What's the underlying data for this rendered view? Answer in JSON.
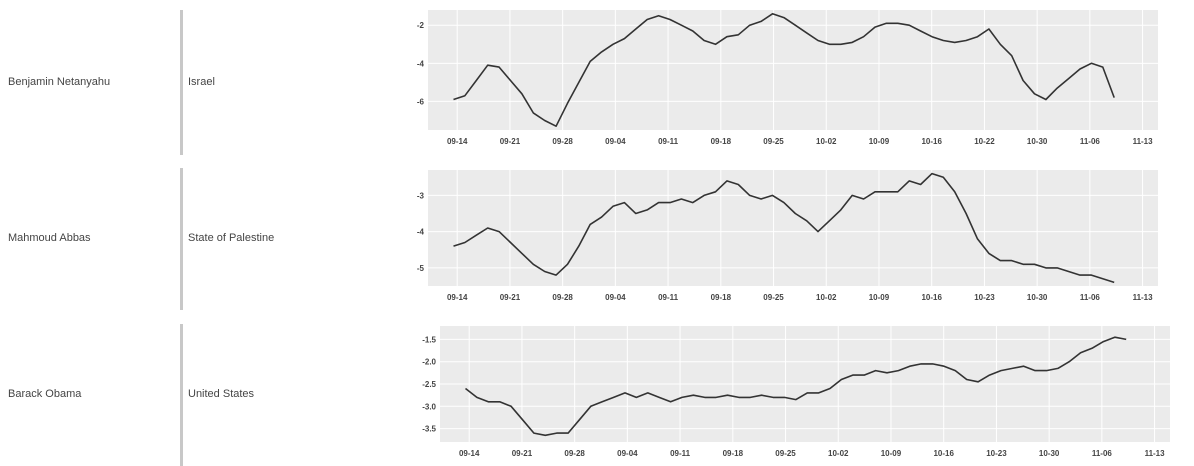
{
  "rows": [
    {
      "name": "Benjamin Netanyahu",
      "country": "Israel"
    },
    {
      "name": "Mahmoud Abbas",
      "country": "State of Palestine"
    },
    {
      "name": "Barack Obama",
      "country": "United States"
    }
  ],
  "colors": {
    "plot_bg": "#ebebeb",
    "grid": "#ffffff",
    "line": "#333333",
    "axis_text": "#444444",
    "divider": "#c8c8c8"
  },
  "chart_data": [
    {
      "type": "line",
      "title": "",
      "xlabel": "",
      "ylabel": "",
      "x_ticks": [
        "09-14",
        "09-21",
        "09-28",
        "09-04",
        "09-11",
        "09-18",
        "09-25",
        "10-02",
        "10-09",
        "10-16",
        "10-22",
        "10-30",
        "11-06",
        "11-13"
      ],
      "y_ticks": [
        -2,
        -4,
        -6
      ],
      "ylim": [
        -7.5,
        -1.2
      ],
      "x": [
        "09-12",
        "09-13",
        "09-14",
        "09-15",
        "09-16",
        "09-17",
        "09-18",
        "09-19",
        "09-20",
        "09-21",
        "09-22",
        "09-23",
        "09-24",
        "09-25",
        "09-26",
        "09-27",
        "09-28",
        "09-29",
        "09-30",
        "10-01",
        "10-02",
        "10-03",
        "10-04",
        "10-05",
        "10-06",
        "10-07",
        "10-08",
        "10-09",
        "10-10",
        "10-11",
        "10-12",
        "10-13",
        "10-14",
        "10-15",
        "10-16",
        "10-17",
        "10-18",
        "10-19",
        "10-20",
        "10-21",
        "10-22",
        "10-23",
        "10-24",
        "10-25",
        "10-26",
        "10-27",
        "10-28",
        "10-29",
        "10-30",
        "10-31",
        "11-01",
        "11-02",
        "11-03",
        "11-04",
        "11-05",
        "11-06",
        "11-07",
        "11-08",
        "11-09"
      ],
      "series": [
        {
          "values": [
            -5.9,
            -5.7,
            -4.9,
            -4.1,
            -4.2,
            -4.9,
            -5.6,
            -6.6,
            -7.0,
            -7.3,
            -6.1,
            -5.0,
            -3.9,
            -3.4,
            -3.0,
            -2.7,
            -2.2,
            -1.7,
            -1.5,
            -1.7,
            -2.0,
            -2.3,
            -2.8,
            -3.0,
            -2.6,
            -2.5,
            -2.0,
            -1.8,
            -1.4,
            -1.6,
            -2.0,
            -2.4,
            -2.8,
            -3.0,
            -3.0,
            -2.9,
            -2.6,
            -2.1,
            -1.9,
            -1.9,
            -2.0,
            -2.3,
            -2.6,
            -2.8,
            -2.9,
            -2.8,
            -2.6,
            -2.2,
            -3.0,
            -3.6,
            -4.9,
            -5.6,
            -5.9,
            -5.3,
            -4.8,
            -4.3,
            -4.0,
            -4.2,
            -5.8
          ]
        }
      ]
    },
    {
      "type": "line",
      "title": "",
      "xlabel": "",
      "ylabel": "",
      "x_ticks": [
        "09-14",
        "09-21",
        "09-28",
        "09-04",
        "09-11",
        "09-18",
        "09-25",
        "10-02",
        "10-09",
        "10-16",
        "10-23",
        "10-30",
        "11-06",
        "11-13"
      ],
      "y_ticks": [
        -3,
        -4,
        -5
      ],
      "ylim": [
        -5.5,
        -2.3
      ],
      "x": [
        "09-12",
        "09-13",
        "09-14",
        "09-15",
        "09-16",
        "09-17",
        "09-18",
        "09-19",
        "09-20",
        "09-21",
        "09-22",
        "09-23",
        "09-24",
        "09-25",
        "09-26",
        "09-27",
        "09-28",
        "09-29",
        "09-30",
        "10-01",
        "10-02",
        "10-03",
        "10-04",
        "10-05",
        "10-06",
        "10-07",
        "10-08",
        "10-09",
        "10-10",
        "10-11",
        "10-12",
        "10-13",
        "10-14",
        "10-15",
        "10-16",
        "10-17",
        "10-18",
        "10-19",
        "10-20",
        "10-21",
        "10-22",
        "10-23",
        "10-24",
        "10-25",
        "10-26",
        "10-27",
        "10-28",
        "10-29",
        "10-30",
        "10-31",
        "11-01",
        "11-02",
        "11-03",
        "11-04",
        "11-05",
        "11-06",
        "11-07",
        "11-08",
        "11-09"
      ],
      "series": [
        {
          "values": [
            -4.4,
            -4.3,
            -4.1,
            -3.9,
            -4.0,
            -4.3,
            -4.6,
            -4.9,
            -5.1,
            -5.2,
            -4.9,
            -4.4,
            -3.8,
            -3.6,
            -3.3,
            -3.2,
            -3.5,
            -3.4,
            -3.2,
            -3.2,
            -3.1,
            -3.2,
            -3.0,
            -2.9,
            -2.6,
            -2.7,
            -3.0,
            -3.1,
            -3.0,
            -3.2,
            -3.5,
            -3.7,
            -4.0,
            -3.7,
            -3.4,
            -3.0,
            -3.1,
            -2.9,
            -2.9,
            -2.9,
            -2.6,
            -2.7,
            -2.4,
            -2.5,
            -2.9,
            -3.5,
            -4.2,
            -4.6,
            -4.8,
            -4.8,
            -4.9,
            -4.9,
            -5.0,
            -5.0,
            -5.1,
            -5.2,
            -5.2,
            -5.3,
            -5.4
          ]
        }
      ]
    },
    {
      "type": "line",
      "title": "",
      "xlabel": "",
      "ylabel": "",
      "x_ticks": [
        "09-14",
        "09-21",
        "09-28",
        "09-04",
        "09-11",
        "09-18",
        "09-25",
        "10-02",
        "10-09",
        "10-16",
        "10-23",
        "10-30",
        "11-06",
        "11-13"
      ],
      "y_ticks": [
        -1.5,
        -2.0,
        -2.5,
        -3.0,
        -3.5
      ],
      "y_tick_labels": [
        "-1.5",
        "-2.0",
        "-2.5",
        "-3.0",
        "-3.5"
      ],
      "ylim": [
        -3.8,
        -1.2
      ],
      "x": [
        "09-12",
        "09-13",
        "09-14",
        "09-15",
        "09-16",
        "09-17",
        "09-18",
        "09-19",
        "09-20",
        "09-21",
        "09-22",
        "09-23",
        "09-24",
        "09-25",
        "09-26",
        "09-27",
        "09-28",
        "09-29",
        "09-30",
        "10-01",
        "10-02",
        "10-03",
        "10-04",
        "10-05",
        "10-06",
        "10-07",
        "10-08",
        "10-09",
        "10-10",
        "10-11",
        "10-12",
        "10-13",
        "10-14",
        "10-15",
        "10-16",
        "10-17",
        "10-18",
        "10-19",
        "10-20",
        "10-21",
        "10-22",
        "10-23",
        "10-24",
        "10-25",
        "10-26",
        "10-27",
        "10-28",
        "10-29",
        "10-30",
        "10-31",
        "11-01",
        "11-02",
        "11-03",
        "11-04",
        "11-05",
        "11-06",
        "11-07",
        "11-08",
        "11-09"
      ],
      "series": [
        {
          "values": [
            -2.6,
            -2.8,
            -2.9,
            -2.9,
            -3.0,
            -3.3,
            -3.6,
            -3.65,
            -3.6,
            -3.6,
            -3.3,
            -3.0,
            -2.9,
            -2.8,
            -2.7,
            -2.8,
            -2.7,
            -2.8,
            -2.9,
            -2.8,
            -2.75,
            -2.8,
            -2.8,
            -2.75,
            -2.8,
            -2.8,
            -2.75,
            -2.8,
            -2.8,
            -2.85,
            -2.7,
            -2.7,
            -2.6,
            -2.4,
            -2.3,
            -2.3,
            -2.2,
            -2.25,
            -2.2,
            -2.1,
            -2.05,
            -2.05,
            -2.1,
            -2.2,
            -2.4,
            -2.45,
            -2.3,
            -2.2,
            -2.15,
            -2.1,
            -2.2,
            -2.2,
            -2.15,
            -2.0,
            -1.8,
            -1.7,
            -1.55,
            -1.45,
            -1.5
          ]
        }
      ]
    }
  ]
}
